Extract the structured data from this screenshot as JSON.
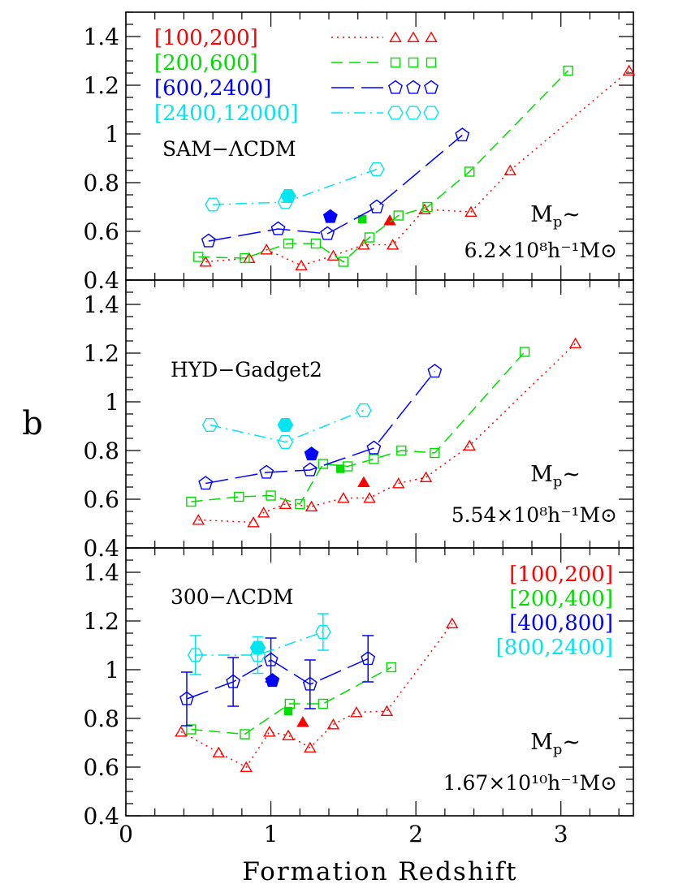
{
  "figure": {
    "ylabel": "b",
    "xlabel": "Formation Redshift",
    "x_ticks": [
      "0",
      "1",
      "2",
      "3"
    ],
    "y_ticks": [
      "0.4",
      "0.6",
      "0.8",
      "1",
      "1.2",
      "1.4"
    ]
  },
  "colors": {
    "red": "#ff0000",
    "green": "#00dd00",
    "blue": "#0000ff",
    "cyan": "#00e5f0",
    "black": "#000000"
  },
  "chart_data": [
    {
      "type": "line",
      "panel_label": "SAM−ΛCDM",
      "mass_label_line1": "M",
      "mass_label_line1_sub": "p",
      "mass_label_line1_suffix": "~",
      "mass_label_line2": "6.2×10⁸h⁻¹M⊙",
      "xlim": [
        0,
        3.5
      ],
      "ylim": [
        0.4,
        1.5
      ],
      "legend": [
        "[100,200]",
        "[200,600]",
        "[600,2400]",
        "[2400,12000]"
      ],
      "legend_placement": "top-left",
      "series": [
        {
          "name": "[100,200]",
          "color": "red",
          "marker": "triangle",
          "dash": "dotted",
          "x": [
            0.55,
            0.85,
            0.97,
            1.21,
            1.43,
            1.64,
            1.84,
            2.06,
            2.38,
            2.65,
            3.47
          ],
          "y": [
            0.475,
            0.49,
            0.525,
            0.46,
            0.5,
            0.545,
            0.545,
            0.69,
            0.68,
            0.85,
            1.26
          ],
          "filled": {
            "x": 1.82,
            "y": 0.645
          }
        },
        {
          "name": "[200,600]",
          "color": "green",
          "marker": "square",
          "dash": "dashed",
          "x": [
            0.5,
            0.82,
            1.12,
            1.31,
            1.5,
            1.68,
            1.88,
            2.08,
            2.37,
            3.05
          ],
          "y": [
            0.495,
            0.49,
            0.55,
            0.55,
            0.475,
            0.575,
            0.665,
            0.7,
            0.845,
            1.26
          ],
          "filled": {
            "x": 1.63,
            "y": 0.65
          }
        },
        {
          "name": "[600,2400]",
          "color": "blue",
          "marker": "pentagon",
          "dash": "long-dashed",
          "x": [
            0.57,
            1.05,
            1.39,
            1.73,
            2.32
          ],
          "y": [
            0.56,
            0.61,
            0.59,
            0.7,
            0.995
          ],
          "filled": {
            "x": 1.41,
            "y": 0.66
          }
        },
        {
          "name": "[2400,12000]",
          "color": "cyan",
          "marker": "hexagon",
          "dash": "dash-dot",
          "x": [
            0.6,
            1.1,
            1.73
          ],
          "y": [
            0.71,
            0.72,
            0.855
          ],
          "filled": {
            "x": 1.12,
            "y": 0.745
          }
        }
      ]
    },
    {
      "type": "line",
      "panel_label": "HYD−Gadget2",
      "mass_label_line1": "M",
      "mass_label_line1_sub": "p",
      "mass_label_line1_suffix": "~",
      "mass_label_line2": "5.54×10⁸h⁻¹M⊙",
      "xlim": [
        0,
        3.5
      ],
      "ylim": [
        0.4,
        1.5
      ],
      "series": [
        {
          "name": "[100,200]",
          "color": "red",
          "marker": "triangle",
          "dash": "dotted",
          "x": [
            0.5,
            0.88,
            0.95,
            1.1,
            1.28,
            1.5,
            1.68,
            1.88,
            2.07,
            2.37,
            3.1
          ],
          "y": [
            0.515,
            0.505,
            0.545,
            0.58,
            0.57,
            0.605,
            0.605,
            0.665,
            0.69,
            0.82,
            1.24
          ],
          "filled": {
            "x": 1.64,
            "y": 0.67
          }
        },
        {
          "name": "[200,600]",
          "color": "green",
          "marker": "square",
          "dash": "dashed",
          "x": [
            0.45,
            0.78,
            1.0,
            1.2,
            1.36,
            1.53,
            1.71,
            1.9,
            2.13,
            2.75
          ],
          "y": [
            0.59,
            0.61,
            0.615,
            0.58,
            0.745,
            0.735,
            0.765,
            0.8,
            0.79,
            1.205
          ],
          "filled": {
            "x": 1.48,
            "y": 0.725
          }
        },
        {
          "name": "[600,2400]",
          "color": "blue",
          "marker": "pentagon",
          "dash": "long-dashed",
          "x": [
            0.55,
            0.97,
            1.27,
            1.71,
            2.13
          ],
          "y": [
            0.665,
            0.71,
            0.72,
            0.81,
            1.125
          ],
          "filled": {
            "x": 1.28,
            "y": 0.785
          }
        },
        {
          "name": "[2400,12000]",
          "color": "cyan",
          "marker": "hexagon",
          "dash": "dash-dot",
          "x": [
            0.58,
            1.1,
            1.64
          ],
          "y": [
            0.905,
            0.835,
            0.965
          ],
          "filled": {
            "x": 1.1,
            "y": 0.905
          }
        }
      ]
    },
    {
      "type": "line",
      "panel_label": "300−ΛCDM",
      "mass_label_line1": "M",
      "mass_label_line1_sub": "p",
      "mass_label_line1_suffix": "~",
      "mass_label_line2": "1.67×10¹⁰h⁻¹M⊙",
      "xlim": [
        0,
        3.5
      ],
      "ylim": [
        0.4,
        1.5
      ],
      "legend": [
        "[100,200]",
        "[200,400]",
        "[400,800]",
        "[800,2400]"
      ],
      "legend_placement": "top-right",
      "series": [
        {
          "name": "[100,200]",
          "color": "red",
          "marker": "triangle",
          "dash": "dotted",
          "x": [
            0.38,
            0.64,
            0.83,
            0.99,
            1.12,
            1.27,
            1.43,
            1.59,
            1.8,
            2.25
          ],
          "y": [
            0.745,
            0.66,
            0.6,
            0.745,
            0.73,
            0.68,
            0.775,
            0.825,
            0.83,
            1.19
          ],
          "filled": {
            "x": 1.22,
            "y": 0.785
          }
        },
        {
          "name": "[200,400]",
          "color": "green",
          "marker": "square",
          "dash": "dashed",
          "x": [
            0.45,
            0.82,
            1.13,
            1.36,
            1.83
          ],
          "y": [
            0.755,
            0.735,
            0.86,
            0.86,
            1.01
          ],
          "filled": {
            "x": 1.12,
            "y": 0.83
          }
        },
        {
          "name": "[400,800]",
          "color": "blue",
          "marker": "pentagon",
          "dash": "long-dashed",
          "x": [
            0.42,
            0.74,
            1.0,
            1.27,
            1.67
          ],
          "y": [
            0.88,
            0.95,
            1.04,
            0.94,
            1.045
          ],
          "yerr": [
            0.11,
            0.1,
            0.09,
            0.1,
            0.095
          ],
          "filled": {
            "x": 1.01,
            "y": 0.955
          }
        },
        {
          "name": "[800,2400]",
          "color": "cyan",
          "marker": "hexagon",
          "dash": "dash-dot",
          "x": [
            0.48,
            0.91,
            1.36
          ],
          "y": [
            1.06,
            1.06,
            1.155
          ],
          "yerr": [
            0.08,
            0.075,
            0.075
          ],
          "filled": {
            "x": 0.91,
            "y": 1.09
          }
        }
      ]
    }
  ]
}
